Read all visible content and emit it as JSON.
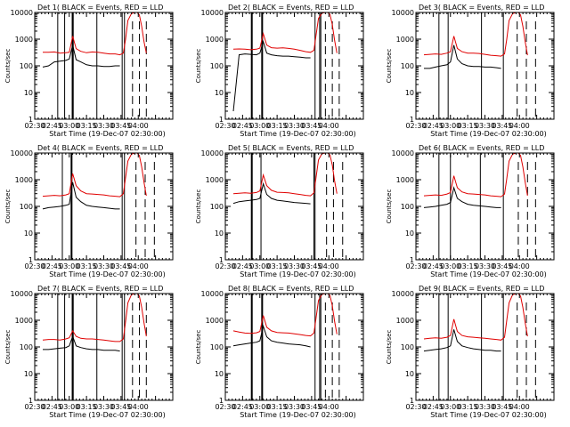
{
  "chart_data": {
    "type": "line",
    "yscale": "log",
    "ylim": [
      1,
      10000
    ],
    "xlim": [
      "02:30",
      "04:30"
    ],
    "grid": false,
    "xlabel": "Start Time (19-Dec-07 02:30:00)",
    "ylabel": "Counts/sec",
    "xticks": [
      "02:30",
      "02:45",
      "03:00",
      "03:15",
      "03:30",
      "03:45",
      "04:00"
    ],
    "yticks": [
      "1",
      "10",
      "100",
      "1000",
      "10000"
    ],
    "colors": {
      "events": "#000000",
      "lld": "#e00000"
    },
    "panels": [
      {
        "title": "Det 1( BLACK = Events, RED = LLD",
        "vlines": [
          "02:50",
          "02:56",
          "03:03",
          "03:03",
          "03:24",
          "03:46",
          "03:48"
        ],
        "dashed": [
          "03:55",
          "04:01",
          "04:07"
        ],
        "x": [
          "02:37",
          "02:42",
          "02:47",
          "02:52",
          "02:57",
          "03:00",
          "03:03",
          "03:06",
          "03:10",
          "03:15",
          "03:20",
          "03:25",
          "03:30",
          "03:35",
          "03:40",
          "03:44",
          "03:47",
          "03:49",
          "03:51",
          "03:54",
          "03:57",
          "03:59",
          "04:01",
          "04:03",
          "04:05",
          "04:07"
        ],
        "series": [
          {
            "key": "events",
            "values": [
              90,
              100,
              140,
              150,
              160,
              180,
              600,
              170,
              140,
              110,
              100,
              100,
              95,
              95,
              100,
              100,
              null,
              null,
              null,
              null,
              null,
              null,
              null,
              null,
              null,
              null
            ]
          },
          {
            "key": "lld",
            "values": [
              320,
              320,
              330,
              300,
              310,
              320,
              1300,
              440,
              350,
              310,
              330,
              320,
              300,
              280,
              280,
              260,
              300,
              1000,
              5000,
              9000,
              10000,
              10000,
              8000,
              3000,
              800,
              300
            ]
          }
        ]
      },
      {
        "title": "Det 2( BLACK = Events, RED = LLD",
        "vlines": [
          "02:53",
          "03:02",
          "03:48",
          "03:52",
          "03:53"
        ],
        "dashed": [
          "03:57",
          "04:03",
          "04:09"
        ],
        "x": [
          "02:37",
          "02:42",
          "02:47",
          "02:52",
          "02:57",
          "03:00",
          "03:03",
          "03:06",
          "03:10",
          "03:15",
          "03:20",
          "03:25",
          "03:30",
          "03:35",
          "03:40",
          "03:44",
          "03:47",
          "03:49",
          "03:51",
          "03:54",
          "03:57",
          "03:59",
          "04:01",
          "04:03",
          "04:05",
          "04:07"
        ],
        "series": [
          {
            "key": "events",
            "values": [
              2,
              260,
              280,
              270,
              260,
              300,
              800,
              300,
              260,
              240,
              230,
              230,
              220,
              210,
              200,
              200,
              null,
              null,
              null,
              null,
              null,
              null,
              null,
              null,
              null,
              null
            ]
          },
          {
            "key": "lld",
            "values": [
              420,
              430,
              420,
              400,
              420,
              460,
              1600,
              600,
              480,
              460,
              470,
              450,
              420,
              380,
              340,
              320,
              380,
              1500,
              6000,
              9500,
              10000,
              10000,
              8500,
              3500,
              900,
              300
            ]
          }
        ]
      },
      {
        "title": "Det 3( BLACK = Events, RED = LLD",
        "vlines": [
          "02:50",
          "02:58",
          "03:27",
          "03:46"
        ],
        "dashed": [
          "03:58",
          "04:06",
          "04:14"
        ],
        "x": [
          "02:37",
          "02:42",
          "02:47",
          "02:52",
          "02:57",
          "03:00",
          "03:03",
          "03:06",
          "03:10",
          "03:15",
          "03:20",
          "03:25",
          "03:30",
          "03:35",
          "03:40",
          "03:44",
          "03:47",
          "03:49",
          "03:51",
          "03:54",
          "03:57",
          "03:59",
          "04:01",
          "04:03",
          "04:05",
          "04:07"
        ],
        "series": [
          {
            "key": "events",
            "values": [
              80,
              80,
              90,
              100,
              110,
              140,
              600,
              180,
              120,
              100,
              95,
              95,
              90,
              90,
              85,
              80,
              null,
              null,
              null,
              null,
              null,
              null,
              null,
              null,
              null,
              null
            ]
          },
          {
            "key": "lld",
            "values": [
              260,
              270,
              280,
              270,
              300,
              340,
              1300,
              450,
              340,
              300,
              300,
              290,
              270,
              250,
              240,
              230,
              280,
              1000,
              5000,
              9000,
              10000,
              10000,
              8000,
              3000,
              800,
              250
            ]
          }
        ]
      },
      {
        "title": "Det 4( BLACK = Events, RED = LLD",
        "vlines": [
          "02:54",
          "03:02",
          "03:46",
          "03:48"
        ],
        "dashed": [
          "03:58",
          "04:06",
          "04:14"
        ],
        "x": [
          "02:37",
          "02:42",
          "02:47",
          "02:52",
          "02:57",
          "03:00",
          "03:03",
          "03:06",
          "03:10",
          "03:15",
          "03:20",
          "03:25",
          "03:30",
          "03:35",
          "03:40",
          "03:44",
          "03:47",
          "03:49",
          "03:51",
          "03:54",
          "03:57",
          "03:59",
          "04:01",
          "04:03",
          "04:05",
          "04:07"
        ],
        "series": [
          {
            "key": "events",
            "values": [
              80,
              90,
              95,
              100,
              110,
              120,
              800,
              220,
              150,
              110,
              100,
              95,
              90,
              85,
              80,
              80,
              null,
              null,
              null,
              null,
              null,
              null,
              null,
              null,
              null,
              null
            ]
          },
          {
            "key": "lld",
            "values": [
              240,
              250,
              260,
              250,
              270,
              300,
              1700,
              600,
              380,
              300,
              290,
              280,
              270,
              250,
              240,
              230,
              300,
              1200,
              5000,
              9000,
              10000,
              10000,
              8000,
              3000,
              800,
              250
            ]
          }
        ]
      },
      {
        "title": "Det 5( BLACK = Events, RED = LLD",
        "vlines": [
          "02:53",
          "03:01",
          "03:47",
          "03:48"
        ],
        "dashed": [
          "03:58",
          "04:04",
          "04:12"
        ],
        "x": [
          "02:37",
          "02:42",
          "02:47",
          "02:52",
          "02:57",
          "03:00",
          "03:03",
          "03:06",
          "03:10",
          "03:15",
          "03:20",
          "03:25",
          "03:30",
          "03:35",
          "03:40",
          "03:44",
          "03:47",
          "03:49",
          "03:51",
          "03:54",
          "03:57",
          "03:59",
          "04:01",
          "04:03",
          "04:05",
          "04:07"
        ],
        "series": [
          {
            "key": "events",
            "values": [
              130,
              150,
              160,
              170,
              180,
              200,
              700,
              280,
              200,
              170,
              160,
              150,
              140,
              135,
              130,
              125,
              null,
              null,
              null,
              null,
              null,
              null,
              null,
              null,
              null,
              null
            ]
          },
          {
            "key": "lld",
            "values": [
              300,
              310,
              320,
              310,
              330,
              380,
              1500,
              600,
              400,
              340,
              330,
              320,
              300,
              280,
              260,
              250,
              320,
              1300,
              5500,
              9500,
              10000,
              10000,
              8500,
              3500,
              900,
              300
            ]
          }
        ]
      },
      {
        "title": "Det 6( BLACK = Events, RED = LLD",
        "vlines": [
          "02:50",
          "03:00",
          "03:26",
          "03:46"
        ],
        "dashed": [
          "03:59",
          "04:07",
          "04:14"
        ],
        "x": [
          "02:37",
          "02:42",
          "02:47",
          "02:52",
          "02:57",
          "03:00",
          "03:03",
          "03:06",
          "03:10",
          "03:15",
          "03:20",
          "03:25",
          "03:30",
          "03:35",
          "03:40",
          "03:44",
          "03:47",
          "03:49",
          "03:51",
          "03:54",
          "03:57",
          "03:59",
          "04:01",
          "04:03",
          "04:05",
          "04:07"
        ],
        "series": [
          {
            "key": "events",
            "values": [
              90,
              95,
              100,
              110,
              120,
              140,
              500,
              200,
              150,
              120,
              110,
              105,
              100,
              95,
              90,
              90,
              null,
              null,
              null,
              null,
              null,
              null,
              null,
              null,
              null,
              null
            ]
          },
          {
            "key": "lld",
            "values": [
              250,
              260,
              270,
              260,
              290,
              330,
              1400,
              500,
              350,
              300,
              290,
              280,
              270,
              250,
              240,
              230,
              290,
              1100,
              5000,
              9000,
              10000,
              10000,
              8000,
              3000,
              800,
              250
            ]
          }
        ]
      },
      {
        "title": "Det 7( BLACK = Events, RED = LLD",
        "vlines": [
          "02:50",
          "02:56",
          "03:03",
          "03:03",
          "03:24",
          "03:46",
          "03:48"
        ],
        "dashed": [
          "03:55",
          "04:01",
          "04:07"
        ],
        "x": [
          "02:37",
          "02:42",
          "02:47",
          "02:52",
          "02:57",
          "03:00",
          "03:03",
          "03:06",
          "03:10",
          "03:15",
          "03:20",
          "03:25",
          "03:30",
          "03:35",
          "03:40",
          "03:44",
          "03:47",
          "03:49",
          "03:51",
          "03:54",
          "03:57",
          "03:59",
          "04:01",
          "04:03",
          "04:05",
          "04:07"
        ],
        "series": [
          {
            "key": "events",
            "values": [
              80,
              80,
              85,
              90,
              95,
              110,
              250,
              110,
              95,
              85,
              80,
              80,
              75,
              75,
              75,
              70,
              null,
              null,
              null,
              null,
              null,
              null,
              null,
              null,
              null,
              null
            ]
          },
          {
            "key": "lld",
            "values": [
              180,
              190,
              190,
              180,
              200,
              220,
              400,
              250,
              210,
              200,
              200,
              190,
              180,
              170,
              160,
              160,
              200,
              900,
              4500,
              9000,
              10000,
              10000,
              8000,
              3000,
              800,
              250
            ]
          }
        ]
      },
      {
        "title": "Det 8( BLACK = Events, RED = LLD",
        "vlines": [
          "02:53",
          "03:02",
          "03:48",
          "03:52",
          "03:53"
        ],
        "dashed": [
          "03:57",
          "04:03",
          "04:09"
        ],
        "x": [
          "02:37",
          "02:42",
          "02:47",
          "02:52",
          "02:57",
          "03:00",
          "03:03",
          "03:06",
          "03:10",
          "03:15",
          "03:20",
          "03:25",
          "03:30",
          "03:35",
          "03:40",
          "03:44",
          "03:47",
          "03:49",
          "03:51",
          "03:54",
          "03:57",
          "03:59",
          "04:01",
          "04:03",
          "04:05",
          "04:07"
        ],
        "series": [
          {
            "key": "events",
            "values": [
              110,
              120,
              130,
              140,
              150,
              170,
              600,
              240,
              170,
              150,
              140,
              130,
              125,
              120,
              110,
              100,
              null,
              null,
              null,
              null,
              null,
              null,
              null,
              null,
              null,
              null
            ]
          },
          {
            "key": "lld",
            "values": [
              400,
              360,
              330,
              320,
              340,
              380,
              1500,
              550,
              400,
              350,
              340,
              330,
              310,
              290,
              270,
              260,
              330,
              1300,
              5500,
              9500,
              10000,
              10000,
              8500,
              3500,
              900,
              300
            ]
          }
        ]
      },
      {
        "title": "Det 9( BLACK = Events, RED = LLD",
        "vlines": [
          "02:50",
          "02:58",
          "03:27",
          "03:46"
        ],
        "dashed": [
          "03:58",
          "04:06",
          "04:14"
        ],
        "x": [
          "02:37",
          "02:42",
          "02:47",
          "02:52",
          "02:57",
          "03:00",
          "03:03",
          "03:06",
          "03:10",
          "03:15",
          "03:20",
          "03:25",
          "03:30",
          "03:35",
          "03:40",
          "03:44",
          "03:47",
          "03:49",
          "03:51",
          "03:54",
          "03:57",
          "03:59",
          "04:01",
          "04:03",
          "04:05",
          "04:07"
        ],
        "series": [
          {
            "key": "events",
            "values": [
              70,
              75,
              80,
              85,
              95,
              110,
              450,
              160,
              110,
              95,
              85,
              80,
              75,
              75,
              70,
              70,
              null,
              null,
              null,
              null,
              null,
              null,
              null,
              null,
              null,
              null
            ]
          },
          {
            "key": "lld",
            "values": [
              200,
              210,
              220,
              210,
              230,
              270,
              1100,
              380,
              270,
              240,
              230,
              220,
              210,
              200,
              190,
              180,
              230,
              1000,
              4500,
              9000,
              10000,
              10000,
              8000,
              3000,
              800,
              250
            ]
          }
        ]
      }
    ]
  }
}
